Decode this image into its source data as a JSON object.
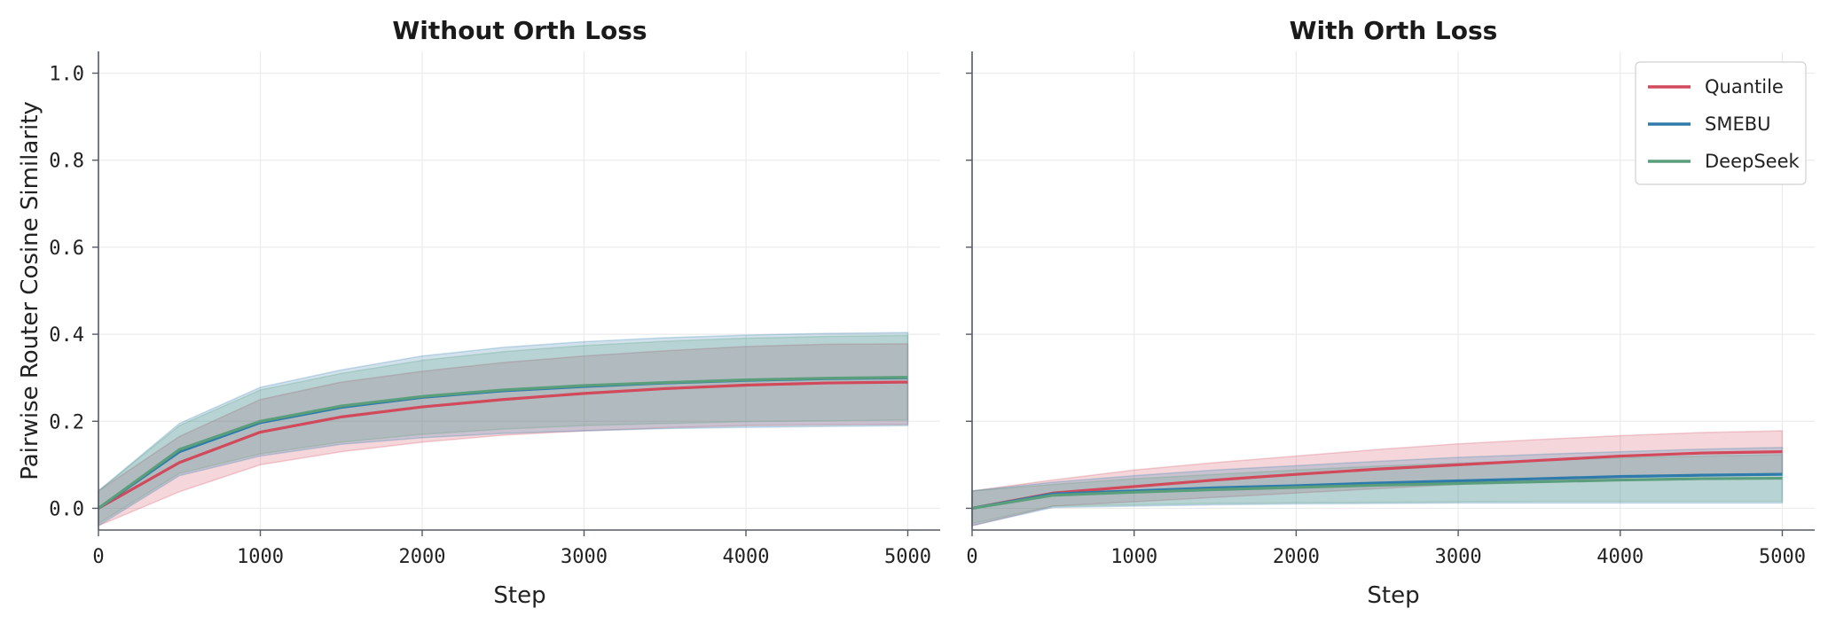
{
  "chart_data": [
    {
      "type": "line",
      "title": "Without Orth Loss",
      "xlabel": "Step",
      "ylabel": "Pairwise Router Cosine Similarity",
      "xlim": [
        0,
        5200
      ],
      "ylim": [
        -0.05,
        1.05
      ],
      "xticks": [
        0,
        1000,
        2000,
        3000,
        4000,
        5000
      ],
      "xtick_labels": [
        "0",
        "1000",
        "2000",
        "3000",
        "4000",
        "5000"
      ],
      "yticks": [
        0.0,
        0.2,
        0.4,
        0.6,
        0.8,
        1.0
      ],
      "ytick_labels": [
        "0.0",
        "0.2",
        "0.4",
        "0.6",
        "0.8",
        "1.0"
      ],
      "grid": true,
      "x": [
        0,
        500,
        1000,
        1500,
        2000,
        2500,
        3000,
        3500,
        4000,
        4500,
        5000
      ],
      "series": [
        {
          "name": "Quantile",
          "color": "#d1495b",
          "values": [
            0.0,
            0.105,
            0.175,
            0.21,
            0.233,
            0.25,
            0.264,
            0.275,
            0.283,
            0.288,
            0.29
          ],
          "lower": [
            -0.04,
            0.038,
            0.1,
            0.13,
            0.152,
            0.168,
            0.178,
            0.185,
            0.19,
            0.192,
            0.193
          ],
          "upper": [
            0.04,
            0.165,
            0.25,
            0.29,
            0.315,
            0.335,
            0.35,
            0.362,
            0.372,
            0.377,
            0.378
          ]
        },
        {
          "name": "SMEBU",
          "color": "#2e7bab",
          "values": [
            0.0,
            0.13,
            0.197,
            0.232,
            0.255,
            0.27,
            0.28,
            0.288,
            0.294,
            0.298,
            0.3
          ],
          "lower": [
            -0.04,
            0.075,
            0.12,
            0.147,
            0.162,
            0.172,
            0.178,
            0.183,
            0.186,
            0.188,
            0.19
          ],
          "upper": [
            0.04,
            0.195,
            0.278,
            0.318,
            0.35,
            0.37,
            0.383,
            0.392,
            0.398,
            0.402,
            0.404
          ]
        },
        {
          "name": "DeepSeek",
          "color": "#5a9e7c",
          "values": [
            0.0,
            0.135,
            0.2,
            0.235,
            0.257,
            0.272,
            0.282,
            0.289,
            0.295,
            0.299,
            0.301
          ],
          "lower": [
            -0.035,
            0.08,
            0.125,
            0.152,
            0.17,
            0.182,
            0.19,
            0.195,
            0.199,
            0.201,
            0.203
          ],
          "upper": [
            0.04,
            0.19,
            0.272,
            0.31,
            0.34,
            0.36,
            0.374,
            0.384,
            0.391,
            0.395,
            0.397
          ]
        }
      ]
    },
    {
      "type": "line",
      "title": "With Orth Loss",
      "xlabel": "Step",
      "ylabel": "",
      "xlim": [
        0,
        5200
      ],
      "ylim": [
        -0.05,
        1.05
      ],
      "xticks": [
        0,
        1000,
        2000,
        3000,
        4000,
        5000
      ],
      "xtick_labels": [
        "0",
        "1000",
        "2000",
        "3000",
        "4000",
        "5000"
      ],
      "yticks": [
        0.0,
        0.2,
        0.4,
        0.6,
        0.8,
        1.0
      ],
      "grid": true,
      "legend": "top-right",
      "x": [
        0,
        500,
        1000,
        1500,
        2000,
        2500,
        3000,
        3500,
        4000,
        4500,
        5000
      ],
      "series": [
        {
          "name": "Quantile",
          "color": "#d1495b",
          "values": [
            0.0,
            0.035,
            0.05,
            0.065,
            0.078,
            0.09,
            0.1,
            0.11,
            0.12,
            0.127,
            0.13
          ],
          "lower": [
            -0.04,
            0.005,
            0.015,
            0.025,
            0.035,
            0.045,
            0.055,
            0.062,
            0.07,
            0.076,
            0.08
          ],
          "upper": [
            0.04,
            0.065,
            0.088,
            0.105,
            0.12,
            0.135,
            0.148,
            0.158,
            0.167,
            0.174,
            0.178
          ]
        },
        {
          "name": "SMEBU",
          "color": "#2e7bab",
          "values": [
            0.0,
            0.033,
            0.04,
            0.047,
            0.052,
            0.058,
            0.063,
            0.068,
            0.073,
            0.076,
            0.078
          ],
          "lower": [
            -0.04,
            0.002,
            0.005,
            0.008,
            0.01,
            0.011,
            0.012,
            0.012,
            0.012,
            0.012,
            0.012
          ],
          "upper": [
            0.04,
            0.06,
            0.075,
            0.088,
            0.098,
            0.108,
            0.117,
            0.124,
            0.13,
            0.136,
            0.14
          ]
        },
        {
          "name": "DeepSeek",
          "color": "#5a9e7c",
          "values": [
            0.0,
            0.03,
            0.037,
            0.043,
            0.048,
            0.053,
            0.057,
            0.061,
            0.065,
            0.068,
            0.069
          ],
          "lower": [
            -0.035,
            0.005,
            0.008,
            0.011,
            0.013,
            0.014,
            0.015,
            0.016,
            0.016,
            0.016,
            0.016
          ],
          "upper": [
            0.04,
            0.055,
            0.068,
            0.078,
            0.088,
            0.097,
            0.104,
            0.11,
            0.116,
            0.12,
            0.123
          ]
        }
      ]
    }
  ]
}
